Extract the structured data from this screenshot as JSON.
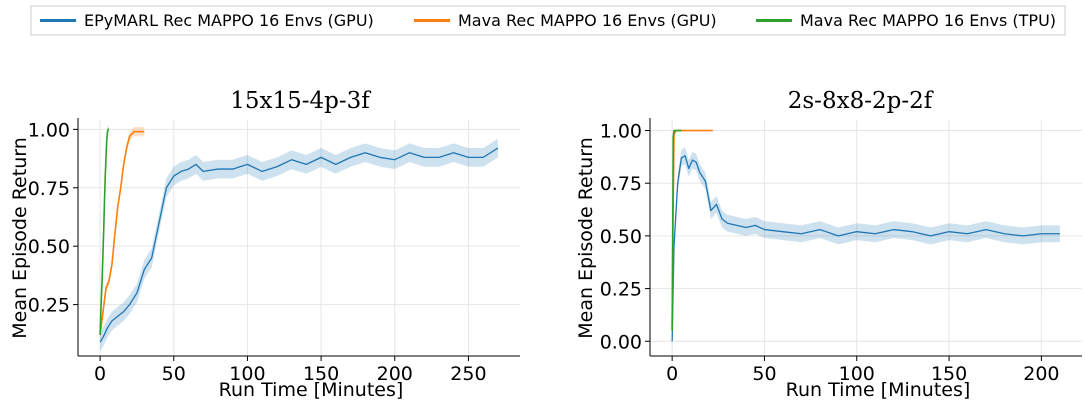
{
  "legend": {
    "placement": "top-center",
    "items": [
      {
        "label": "EPyMARL Rec MAPPO 16 Envs (GPU)",
        "color": "#1f77b4"
      },
      {
        "label": "Mava Rec MAPPO 16 Envs (GPU)",
        "color": "#ff7f0e"
      },
      {
        "label": "Mava Rec MAPPO 16 Envs (TPU)",
        "color": "#2ca02c"
      }
    ]
  },
  "chart_data": [
    {
      "type": "line",
      "title": "15x15-4p-3f",
      "xlabel": "Run Time [Minutes]",
      "ylabel": "Mean Episode Return",
      "xlim": [
        -15,
        285
      ],
      "ylim": [
        0.03,
        1.04
      ],
      "xticks": [
        0,
        50,
        100,
        150,
        200,
        250
      ],
      "yticks": [
        0.25,
        0.5,
        0.75,
        1.0
      ],
      "ytick_labels": [
        "0.25",
        "0.50",
        "0.75",
        "1.00"
      ],
      "grid": true,
      "series": [
        {
          "name": "EPyMARL Rec MAPPO 16 Envs (GPU)",
          "color": "#1f77b4",
          "band": 0.04,
          "x": [
            0,
            2,
            5,
            8,
            12,
            16,
            20,
            25,
            30,
            35,
            40,
            45,
            50,
            55,
            60,
            65,
            70,
            80,
            90,
            100,
            110,
            120,
            130,
            140,
            150,
            160,
            170,
            180,
            190,
            200,
            210,
            220,
            230,
            240,
            250,
            260,
            270
          ],
          "y": [
            0.09,
            0.11,
            0.15,
            0.18,
            0.2,
            0.22,
            0.25,
            0.3,
            0.4,
            0.45,
            0.6,
            0.75,
            0.8,
            0.82,
            0.83,
            0.85,
            0.82,
            0.83,
            0.83,
            0.85,
            0.82,
            0.84,
            0.87,
            0.85,
            0.88,
            0.85,
            0.88,
            0.9,
            0.88,
            0.87,
            0.9,
            0.88,
            0.88,
            0.9,
            0.88,
            0.88,
            0.92
          ]
        },
        {
          "name": "Mava Rec MAPPO 16 Envs (GPU)",
          "color": "#ff7f0e",
          "band": 0.02,
          "x": [
            0,
            2,
            4,
            6,
            8,
            10,
            12,
            14,
            16,
            18,
            20,
            23,
            26,
            30
          ],
          "y": [
            0.12,
            0.22,
            0.32,
            0.35,
            0.42,
            0.55,
            0.67,
            0.75,
            0.85,
            0.92,
            0.97,
            0.99,
            0.99,
            0.99
          ]
        },
        {
          "name": "Mava Rec MAPPO 16 Envs (TPU)",
          "color": "#2ca02c",
          "band": 0.015,
          "x": [
            0,
            0.5,
            1,
            1.5,
            2,
            2.5,
            3,
            3.5,
            4,
            4.5,
            5,
            5.5,
            6
          ],
          "y": [
            0.12,
            0.22,
            0.3,
            0.38,
            0.48,
            0.58,
            0.7,
            0.8,
            0.88,
            0.95,
            0.99,
            1.0,
            1.0
          ]
        }
      ]
    },
    {
      "type": "line",
      "title": "2s-8x8-2p-2f",
      "xlabel": "Run Time [Minutes]",
      "ylabel": "Mean Episode Return",
      "xlim": [
        -12,
        222
      ],
      "ylim": [
        -0.07,
        1.05
      ],
      "xticks": [
        0,
        50,
        100,
        150,
        200
      ],
      "yticks": [
        0.0,
        0.25,
        0.5,
        0.75,
        1.0
      ],
      "ytick_labels": [
        "0.00",
        "0.25",
        "0.50",
        "0.75",
        "1.00"
      ],
      "grid": true,
      "series": [
        {
          "name": "EPyMARL Rec MAPPO 16 Envs (GPU)",
          "color": "#1f77b4",
          "band": 0.04,
          "x": [
            0,
            1,
            3,
            5,
            7,
            9,
            11,
            13,
            15,
            18,
            21,
            24,
            27,
            30,
            35,
            40,
            45,
            50,
            60,
            70,
            80,
            90,
            100,
            110,
            120,
            130,
            140,
            150,
            160,
            170,
            180,
            190,
            200,
            210
          ],
          "y": [
            0.0,
            0.45,
            0.75,
            0.87,
            0.88,
            0.82,
            0.86,
            0.85,
            0.8,
            0.76,
            0.62,
            0.65,
            0.58,
            0.56,
            0.55,
            0.54,
            0.55,
            0.53,
            0.52,
            0.51,
            0.53,
            0.5,
            0.52,
            0.51,
            0.53,
            0.52,
            0.5,
            0.52,
            0.51,
            0.53,
            0.51,
            0.5,
            0.51,
            0.51
          ]
        },
        {
          "name": "Mava Rec MAPPO 16 Envs (GPU)",
          "color": "#ff7f0e",
          "band": 0.0,
          "x": [
            0,
            0.5,
            1,
            2,
            5,
            10,
            15,
            22
          ],
          "y": [
            0.05,
            0.6,
            0.98,
            1.0,
            1.0,
            1.0,
            1.0,
            1.0
          ]
        },
        {
          "name": "Mava Rec MAPPO 16 Envs (TPU)",
          "color": "#2ca02c",
          "band": 0.0,
          "x": [
            0,
            0.3,
            0.6,
            1,
            2,
            3,
            4,
            5
          ],
          "y": [
            0.05,
            0.5,
            0.97,
            1.0,
            1.0,
            1.0,
            1.0,
            1.0
          ]
        }
      ]
    }
  ]
}
